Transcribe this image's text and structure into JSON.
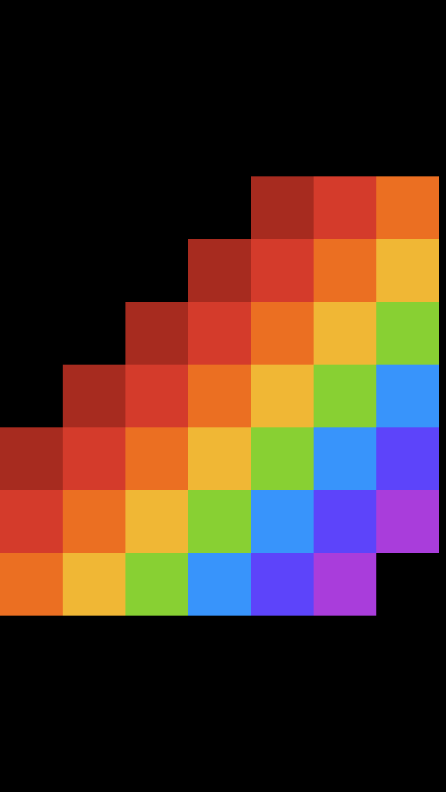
{
  "board": {
    "palette": [
      "#A72B1F",
      "#D43B2B",
      "#EB6F22",
      "#F0B735",
      "#88D033",
      "#3894FB",
      "#5D44FA",
      "#A93DDB"
    ],
    "rows": [
      [
        null,
        null,
        null,
        null,
        0,
        1,
        2
      ],
      [
        null,
        null,
        null,
        0,
        1,
        2,
        3
      ],
      [
        null,
        null,
        0,
        1,
        2,
        3,
        4
      ],
      [
        null,
        0,
        1,
        2,
        3,
        4,
        5
      ],
      [
        0,
        1,
        2,
        3,
        4,
        5,
        6
      ],
      [
        1,
        2,
        3,
        4,
        5,
        6,
        7
      ],
      [
        2,
        3,
        4,
        5,
        6,
        7,
        null
      ]
    ]
  }
}
